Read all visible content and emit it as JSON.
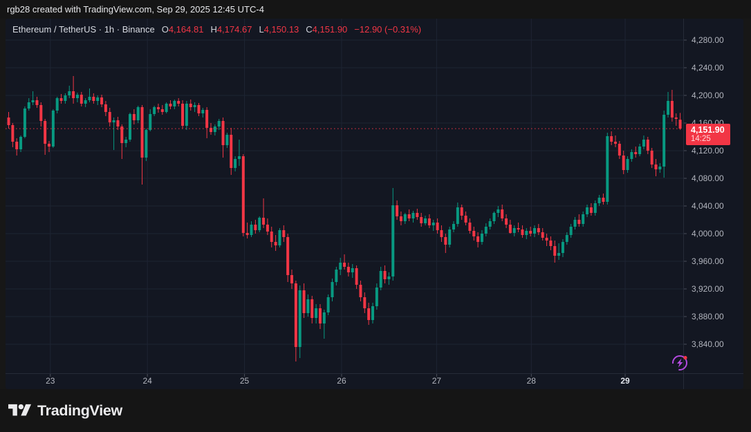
{
  "topbar": {
    "text": "rgb28 created with TradingView.com, Sep 29, 2025 12:45 UTC-4"
  },
  "legend": {
    "symbol": "Ethereum / TetherUS · 1h · Binance",
    "ohlc": {
      "o_label": "O",
      "o": "4,164.81",
      "h_label": "H",
      "h": "4,174.67",
      "l_label": "L",
      "l": "4,150.13",
      "c_label": "C",
      "c": "4,151.90"
    },
    "change": "−12.90 (−0.31%)"
  },
  "last_price": {
    "label": "4,151.90",
    "countdown": "14:25"
  },
  "footer": {
    "brand": "TradingView"
  },
  "icons": {
    "flash": "lightning-bolt-in-circle-with-red-dot",
    "logo": "tradingview-mark"
  },
  "colors": {
    "up": "#089981",
    "down": "#f23645",
    "accent_red": "#f23645",
    "purple": "#b44ae0",
    "axis_text": "#b2b5be",
    "pane_bg": "#131722",
    "grid": "#1e2433",
    "outer_bg": "#151515"
  },
  "chart_data": {
    "type": "candlestick",
    "title": "Ethereum / TetherUS",
    "interval": "1h",
    "exchange": "Binance",
    "ohlc_current": {
      "open": 4164.81,
      "high": 4174.67,
      "low": 4150.13,
      "close": 4151.9,
      "change": -12.9,
      "change_pct": -0.31
    },
    "last_price": 4151.9,
    "y_axis": {
      "ticks": [
        {
          "price": 4280,
          "label": "4,280.00"
        },
        {
          "price": 4240,
          "label": "4,240.00"
        },
        {
          "price": 4200,
          "label": "4,200.00"
        },
        {
          "price": 4160,
          "label": "4,160.00"
        },
        {
          "price": 4120,
          "label": "4,120.00"
        },
        {
          "price": 4080,
          "label": "4,080.00"
        },
        {
          "price": 4040,
          "label": "4,040.00"
        },
        {
          "price": 4000,
          "label": "4,000.00"
        },
        {
          "price": 3960,
          "label": "3,960.00"
        },
        {
          "price": 3920,
          "label": "3,920.00"
        },
        {
          "price": 3880,
          "label": "3,880.00"
        },
        {
          "price": 3840,
          "label": "3,840.00"
        }
      ]
    },
    "x_axis": {
      "ticks": [
        {
          "label": "23",
          "index": 10.3,
          "bold": false
        },
        {
          "label": "24",
          "index": 34.3,
          "bold": false
        },
        {
          "label": "25",
          "index": 58.3,
          "bold": false
        },
        {
          "label": "26",
          "index": 82.3,
          "bold": false
        },
        {
          "label": "27",
          "index": 105.8,
          "bold": false
        },
        {
          "label": "28",
          "index": 129.2,
          "bold": false
        },
        {
          "label": "29",
          "index": 152.4,
          "bold": true
        }
      ]
    },
    "candles": [
      [
        4168,
        4176,
        4152,
        4157
      ],
      [
        4157,
        4160,
        4125,
        4133
      ],
      [
        4133,
        4138,
        4113,
        4122
      ],
      [
        4122,
        4142,
        4118,
        4140
      ],
      [
        4140,
        4184,
        4138,
        4181
      ],
      [
        4181,
        4196,
        4178,
        4190
      ],
      [
        4190,
        4206,
        4186,
        4193
      ],
      [
        4193,
        4198,
        4182,
        4186
      ],
      [
        4186,
        4190,
        4155,
        4163
      ],
      [
        4163,
        4166,
        4114,
        4130
      ],
      [
        4130,
        4134,
        4118,
        4126
      ],
      [
        4126,
        4180,
        4124,
        4178
      ],
      [
        4178,
        4198,
        4174,
        4196
      ],
      [
        4196,
        4202,
        4188,
        4192
      ],
      [
        4192,
        4203,
        4188,
        4200
      ],
      [
        4200,
        4214,
        4196,
        4206
      ],
      [
        4206,
        4228,
        4188,
        4196
      ],
      [
        4196,
        4204,
        4190,
        4201
      ],
      [
        4201,
        4205,
        4184,
        4188
      ],
      [
        4188,
        4196,
        4183,
        4193
      ],
      [
        4193,
        4210,
        4190,
        4198
      ],
      [
        4198,
        4203,
        4188,
        4192
      ],
      [
        4192,
        4200,
        4186,
        4197
      ],
      [
        4197,
        4201,
        4183,
        4187
      ],
      [
        4187,
        4192,
        4170,
        4176
      ],
      [
        4176,
        4182,
        4155,
        4161
      ],
      [
        4161,
        4168,
        4121,
        4164
      ],
      [
        4164,
        4169,
        4150,
        4155
      ],
      [
        4155,
        4158,
        4108,
        4131
      ],
      [
        4131,
        4140,
        4125,
        4136
      ],
      [
        4136,
        4175,
        4133,
        4173
      ],
      [
        4173,
        4180,
        4158,
        4164
      ],
      [
        4164,
        4185,
        4160,
        4183
      ],
      [
        4183,
        4186,
        4071,
        4110
      ],
      [
        4110,
        4152,
        4105,
        4150
      ],
      [
        4150,
        4180,
        4148,
        4173
      ],
      [
        4173,
        4185,
        4170,
        4183
      ],
      [
        4183,
        4188,
        4175,
        4180
      ],
      [
        4180,
        4186,
        4172,
        4176
      ],
      [
        4176,
        4190,
        4174,
        4188
      ],
      [
        4188,
        4193,
        4180,
        4184
      ],
      [
        4184,
        4194,
        4180,
        4192
      ],
      [
        4192,
        4196,
        4184,
        4188
      ],
      [
        4188,
        4193,
        4152,
        4156
      ],
      [
        4156,
        4192,
        4150,
        4188
      ],
      [
        4188,
        4194,
        4178,
        4183
      ],
      [
        4183,
        4190,
        4176,
        4186
      ],
      [
        4186,
        4189,
        4170,
        4174
      ],
      [
        4174,
        4182,
        4168,
        4179
      ],
      [
        4179,
        4183,
        4138,
        4153
      ],
      [
        4153,
        4160,
        4143,
        4147
      ],
      [
        4147,
        4158,
        4142,
        4155
      ],
      [
        4155,
        4166,
        4150,
        4163
      ],
      [
        4163,
        4168,
        4110,
        4128
      ],
      [
        4128,
        4146,
        4124,
        4143
      ],
      [
        4143,
        4153,
        4085,
        4095
      ],
      [
        4095,
        4112,
        4090,
        4108
      ],
      [
        4108,
        4136,
        4098,
        4112
      ],
      [
        4112,
        4115,
        3996,
        4001
      ],
      [
        4001,
        4016,
        3993,
        3998
      ],
      [
        3998,
        4018,
        3995,
        4013
      ],
      [
        4013,
        4020,
        4000,
        4005
      ],
      [
        4005,
        4025,
        4002,
        4023
      ],
      [
        4023,
        4051,
        4008,
        4013
      ],
      [
        4013,
        4022,
        3998,
        4003
      ],
      [
        4003,
        4010,
        3980,
        3988
      ],
      [
        3988,
        3998,
        3975,
        3983
      ],
      [
        3983,
        4008,
        3980,
        4005
      ],
      [
        4005,
        4012,
        3988,
        3995
      ],
      [
        3995,
        4000,
        3930,
        3940
      ],
      [
        3940,
        3948,
        3920,
        3928
      ],
      [
        3928,
        3932,
        3815,
        3836
      ],
      [
        3836,
        3925,
        3820,
        3918
      ],
      [
        3918,
        3928,
        3878,
        3885
      ],
      [
        3885,
        3912,
        3880,
        3905
      ],
      [
        3905,
        3910,
        3870,
        3878
      ],
      [
        3878,
        3898,
        3870,
        3892
      ],
      [
        3892,
        3898,
        3862,
        3870
      ],
      [
        3870,
        3890,
        3848,
        3886
      ],
      [
        3886,
        3912,
        3882,
        3908
      ],
      [
        3908,
        3935,
        3902,
        3930
      ],
      [
        3930,
        3952,
        3925,
        3948
      ],
      [
        3948,
        3965,
        3940,
        3958
      ],
      [
        3958,
        3970,
        3948,
        3952
      ],
      [
        3952,
        3958,
        3938,
        3944
      ],
      [
        3944,
        3956,
        3936,
        3950
      ],
      [
        3950,
        3954,
        3920,
        3926
      ],
      [
        3926,
        3932,
        3902,
        3908
      ],
      [
        3908,
        3915,
        3885,
        3892
      ],
      [
        3892,
        3900,
        3868,
        3875
      ],
      [
        3875,
        3900,
        3870,
        3895
      ],
      [
        3895,
        3928,
        3890,
        3922
      ],
      [
        3922,
        3952,
        3918,
        3946
      ],
      [
        3946,
        3954,
        3928,
        3934
      ],
      [
        3934,
        3944,
        3926,
        3938
      ],
      [
        3938,
        4066,
        3932,
        4041
      ],
      [
        4041,
        4048,
        4020,
        4025
      ],
      [
        4025,
        4032,
        4012,
        4018
      ],
      [
        4018,
        4030,
        4014,
        4028
      ],
      [
        4028,
        4035,
        4018,
        4022
      ],
      [
        4022,
        4033,
        4016,
        4030
      ],
      [
        4030,
        4036,
        4020,
        4024
      ],
      [
        4024,
        4030,
        4010,
        4015
      ],
      [
        4015,
        4026,
        4012,
        4022
      ],
      [
        4022,
        4028,
        4008,
        4012
      ],
      [
        4012,
        4020,
        4004,
        4016
      ],
      [
        4016,
        4022,
        4000,
        4005
      ],
      [
        4005,
        4012,
        3988,
        3995
      ],
      [
        3995,
        4000,
        3972,
        3984
      ],
      [
        3984,
        4010,
        3980,
        4006
      ],
      [
        4006,
        4018,
        4002,
        4014
      ],
      [
        4014,
        4045,
        4010,
        4038
      ],
      [
        4038,
        4042,
        4020,
        4026
      ],
      [
        4026,
        4032,
        4012,
        4016
      ],
      [
        4016,
        4022,
        4000,
        4004
      ],
      [
        4004,
        4010,
        3990,
        3996
      ],
      [
        3996,
        4002,
        3980,
        3988
      ],
      [
        3988,
        4005,
        3984,
        4000
      ],
      [
        4000,
        4015,
        3996,
        4010
      ],
      [
        4010,
        4022,
        4006,
        4018
      ],
      [
        4018,
        4032,
        4014,
        4030
      ],
      [
        4030,
        4040,
        4024,
        4035
      ],
      [
        4035,
        4042,
        4018,
        4022
      ],
      [
        4022,
        4028,
        4008,
        4013
      ],
      [
        4013,
        4020,
        4000,
        4001
      ],
      [
        4001,
        4012,
        3996,
        4008
      ],
      [
        4008,
        4016,
        4002,
        4006
      ],
      [
        4006,
        4012,
        3994,
        3998
      ],
      [
        3998,
        4008,
        3992,
        4004
      ],
      [
        4004,
        4010,
        3996,
        4000
      ],
      [
        4000,
        4012,
        3995,
        4008
      ],
      [
        4008,
        4014,
        3998,
        4002
      ],
      [
        4002,
        4008,
        3990,
        3994
      ],
      [
        3994,
        4000,
        3982,
        3990
      ],
      [
        3990,
        3996,
        3976,
        3982
      ],
      [
        3982,
        3990,
        3958,
        3968
      ],
      [
        3968,
        3986,
        3962,
        3972
      ],
      [
        3972,
        3992,
        3966,
        3988
      ],
      [
        3988,
        4002,
        3984,
        3998
      ],
      [
        3998,
        4014,
        3994,
        4010
      ],
      [
        4010,
        4024,
        4006,
        4020
      ],
      [
        4020,
        4028,
        4010,
        4014
      ],
      [
        4014,
        4032,
        4010,
        4028
      ],
      [
        4028,
        4042,
        4024,
        4038
      ],
      [
        4038,
        4044,
        4026,
        4030
      ],
      [
        4030,
        4048,
        4026,
        4044
      ],
      [
        4044,
        4056,
        4040,
        4052
      ],
      [
        4052,
        4058,
        4042,
        4046
      ],
      [
        4046,
        4146,
        4042,
        4141
      ],
      [
        4141,
        4148,
        4128,
        4133
      ],
      [
        4133,
        4142,
        4125,
        4130
      ],
      [
        4130,
        4134,
        4108,
        4113
      ],
      [
        4113,
        4120,
        4086,
        4092
      ],
      [
        4092,
        4112,
        4088,
        4108
      ],
      [
        4108,
        4122,
        4104,
        4118
      ],
      [
        4118,
        4126,
        4110,
        4115
      ],
      [
        4115,
        4130,
        4112,
        4126
      ],
      [
        4126,
        4142,
        4122,
        4136
      ],
      [
        4136,
        4140,
        4115,
        4120
      ],
      [
        4120,
        4124,
        4095,
        4100
      ],
      [
        4100,
        4108,
        4083,
        4093
      ],
      [
        4093,
        4102,
        4088,
        4097
      ],
      [
        4097,
        4178,
        4081,
        4172
      ],
      [
        4172,
        4205,
        4168,
        4192
      ],
      [
        4192,
        4208,
        4162,
        4168
      ],
      [
        4168,
        4174,
        4156,
        4166
      ],
      [
        4164.81,
        4174.67,
        4150.13,
        4151.9
      ]
    ]
  }
}
